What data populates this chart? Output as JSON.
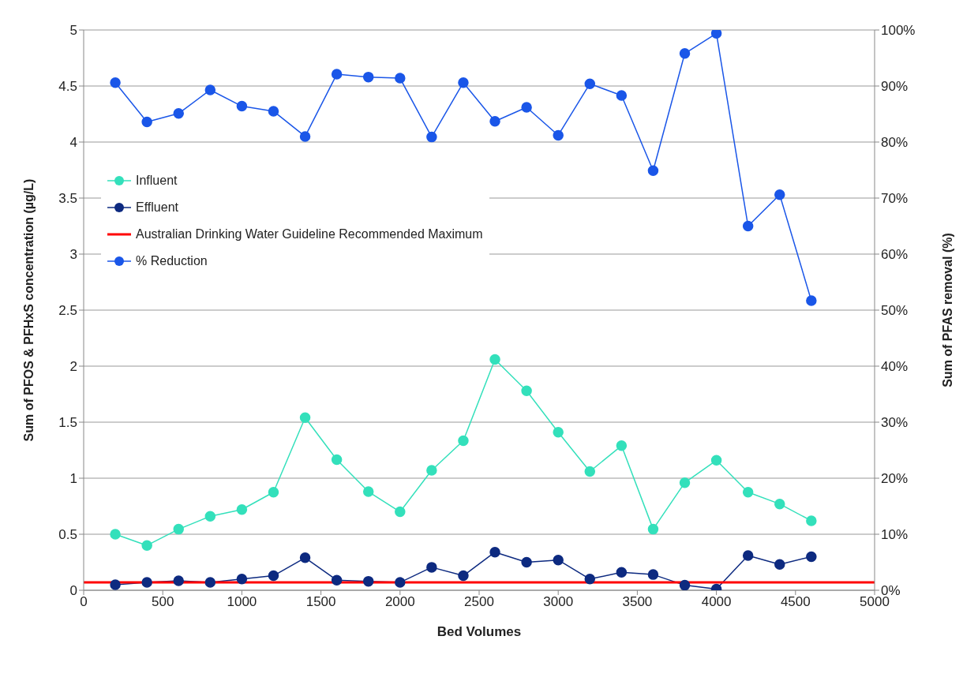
{
  "chart_data": {
    "type": "line",
    "xlabel": "Bed Volumes",
    "ylabel": "Sum of PFOS & PFHxS concentration (µg/L)",
    "y2label": "Sum of PFAS removal (%)",
    "x": [
      200,
      400,
      600,
      800,
      1000,
      1200,
      1400,
      1600,
      1800,
      2000,
      2200,
      2400,
      2600,
      2800,
      3000,
      3200,
      3400,
      3600,
      3800,
      4000,
      4200,
      4400,
      4600
    ],
    "series": [
      {
        "name": "Influent",
        "color": "#33e0bb",
        "values": [
          0.5,
          0.4,
          0.545,
          0.66,
          0.72,
          0.875,
          1.54,
          1.165,
          0.88,
          0.7,
          1.07,
          1.335,
          2.06,
          1.78,
          1.41,
          1.06,
          1.29,
          0.545,
          0.96,
          1.16,
          0.875,
          0.77,
          0.62
        ]
      },
      {
        "name": "Effluent",
        "color": "#0d2a80",
        "values": [
          0.05,
          0.07,
          0.085,
          0.07,
          0.1,
          0.13,
          0.29,
          0.09,
          0.08,
          0.07,
          0.205,
          0.13,
          0.34,
          0.25,
          0.27,
          0.1,
          0.16,
          0.14,
          0.045,
          0.01,
          0.31,
          0.23,
          0.3
        ]
      },
      {
        "name": "Australian Drinking Water Guideline Recommended Maximum",
        "color": "#ff0000",
        "x": [
          0,
          5000
        ],
        "values": [
          0.07,
          0.07
        ],
        "marker": "none"
      },
      {
        "name": "% Reduction",
        "color": "#1a56e8",
        "axis": "y2",
        "values": [
          90.6,
          83.6,
          85.1,
          89.3,
          86.4,
          85.5,
          81.0,
          92.1,
          91.6,
          91.4,
          80.9,
          90.6,
          83.7,
          86.2,
          81.2,
          90.4,
          88.3,
          74.9,
          95.8,
          99.4,
          65.0,
          70.6,
          51.7
        ]
      }
    ],
    "xlim": [
      0,
      5000
    ],
    "xticks": [
      0,
      500,
      1000,
      1500,
      2000,
      2500,
      3000,
      3500,
      4000,
      4500,
      5000
    ],
    "ylim": [
      0,
      5
    ],
    "yticks": [
      0,
      0.5,
      1,
      1.5,
      2,
      2.5,
      3,
      3.5,
      4,
      4.5,
      5
    ],
    "y2lim": [
      0,
      100
    ],
    "y2ticks": [
      {
        "value": 0,
        "label": "0%"
      },
      {
        "value": 10,
        "label": "10%"
      },
      {
        "value": 20,
        "label": "20%"
      },
      {
        "value": 30,
        "label": "30%"
      },
      {
        "value": 40,
        "label": "40%"
      },
      {
        "value": 50,
        "label": "50%"
      },
      {
        "value": 60,
        "label": "60%"
      },
      {
        "value": 70,
        "label": "70%"
      },
      {
        "value": 80,
        "label": "80%"
      },
      {
        "value": 90,
        "label": "90%"
      },
      {
        "value": 100,
        "label": "100%"
      }
    ],
    "grid": "y",
    "legend": "left",
    "marker": "circle",
    "line_style": "solid"
  }
}
